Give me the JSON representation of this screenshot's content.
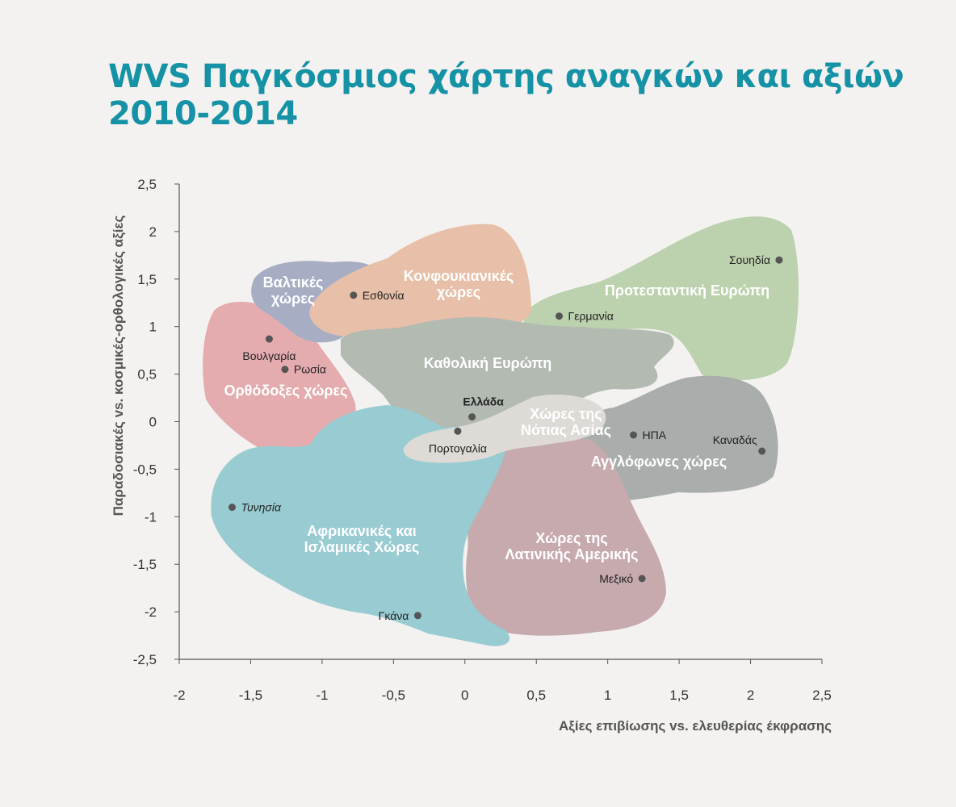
{
  "title": {
    "line1": "WVS Παγκόσμιος χάρτης αναγκών και αξιών",
    "line2": "2010-2014"
  },
  "colors": {
    "title": "#1592a6",
    "baltic": "#a7aec4",
    "confucian": "#e8bfa8",
    "protestant": "#bcd1ae",
    "orthodox": "#e5acb0",
    "catholic": "#b2bab2",
    "african_islamic": "#98cbd2",
    "latin_america": "#c6aaae",
    "english_speaking": "#a9adab",
    "south_asia": "#dedad6",
    "point": "#555555"
  },
  "chart_data": {
    "type": "scatter",
    "xlabel": "Αξίες επιβίωσης vs. ελευθερίας έκφρασης",
    "ylabel": "Παραδοσιακές vs. κοσμικές-ορθολογικές αξίες",
    "xlim": [
      -2,
      2.5
    ],
    "ylim": [
      -2.5,
      2.5
    ],
    "xticks": [
      {
        "v": -2,
        "label": "-2"
      },
      {
        "v": -1.5,
        "label": "-1,5"
      },
      {
        "v": -1,
        "label": "-1"
      },
      {
        "v": -0.5,
        "label": "-0,5"
      },
      {
        "v": 0,
        "label": "0"
      },
      {
        "v": 0.5,
        "label": "0,5"
      },
      {
        "v": 1,
        "label": "1"
      },
      {
        "v": 1.5,
        "label": "1,5"
      },
      {
        "v": 2,
        "label": "2"
      },
      {
        "v": 2.5,
        "label": "2,5"
      }
    ],
    "yticks": [
      {
        "v": 2.5,
        "label": "2,5"
      },
      {
        "v": 2,
        "label": "2"
      },
      {
        "v": 1.5,
        "label": "1,5"
      },
      {
        "v": 1,
        "label": "1"
      },
      {
        "v": 0.5,
        "label": "0,5"
      },
      {
        "v": 0,
        "label": "0"
      },
      {
        "v": -0.5,
        "label": "-0,5"
      },
      {
        "v": -1,
        "label": "-1"
      },
      {
        "v": -1.5,
        "label": "-1,5"
      },
      {
        "v": -2,
        "label": "-2"
      },
      {
        "v": -2.5,
        "label": "-2,5"
      }
    ],
    "points": [
      {
        "name": "Σουηδία",
        "x": 2.2,
        "y": 1.7,
        "anchor": "end",
        "style": ""
      },
      {
        "name": "Γερμανία",
        "x": 0.66,
        "y": 1.11,
        "anchor": "start",
        "style": ""
      },
      {
        "name": "Εσθονία",
        "x": -0.78,
        "y": 1.33,
        "anchor": "start",
        "style": ""
      },
      {
        "name": "Βουλγαρία",
        "x": -1.37,
        "y": 0.87,
        "anchor": "middle-below",
        "style": ""
      },
      {
        "name": "Ρωσία",
        "x": -1.26,
        "y": 0.55,
        "anchor": "start",
        "style": ""
      },
      {
        "name": "Ελλάδα",
        "x": 0.05,
        "y": 0.05,
        "anchor": "middle-above",
        "style": "bold"
      },
      {
        "name": "Πορτογαλία",
        "x": -0.05,
        "y": -0.1,
        "anchor": "middle-below",
        "style": ""
      },
      {
        "name": "ΗΠΑ",
        "x": 1.18,
        "y": -0.14,
        "anchor": "start",
        "style": ""
      },
      {
        "name": "Καναδάς",
        "x": 2.08,
        "y": -0.31,
        "anchor": "end-above",
        "style": ""
      },
      {
        "name": "Τυνησία",
        "x": -1.63,
        "y": -0.9,
        "anchor": "start",
        "style": "italic"
      },
      {
        "name": "Μεξικό",
        "x": 1.24,
        "y": -1.65,
        "anchor": "end",
        "style": ""
      },
      {
        "name": "Γκάνα",
        "x": -0.33,
        "y": -2.04,
        "anchor": "end",
        "style": ""
      }
    ],
    "regions": [
      {
        "name": "Βαλτικές χώρες",
        "lines": [
          "Βαλτικές",
          "χώρες"
        ],
        "color": "#a7aec4"
      },
      {
        "name": "Κονφουκιανικές χώρες",
        "lines": [
          "Κονφουκιανικές",
          "χώρες"
        ],
        "color": "#e8bfa8"
      },
      {
        "name": "Προτεσταντική Ευρώπη",
        "lines": [
          "Προτεσταντική Ευρώπη"
        ],
        "color": "#bcd1ae"
      },
      {
        "name": "Ορθόδοξες χώρες",
        "lines": [
          "Ορθόδοξες χώρες"
        ],
        "color": "#e5acb0"
      },
      {
        "name": "Καθολική Ευρώπη",
        "lines": [
          "Καθολική Ευρώπη"
        ],
        "color": "#b2bab2"
      },
      {
        "name": "Αφρικανικές και Ισλαμικές Χώρες",
        "lines": [
          "Αφρικανικές και",
          "Ισλαμικές Χώρες"
        ],
        "color": "#98cbd2"
      },
      {
        "name": "Χώρες της Λατινικής Αμερικής",
        "lines": [
          "Χώρες της",
          "Λατινικής Αμερικής"
        ],
        "color": "#c6aaae"
      },
      {
        "name": "Αγγλόφωνες χώρες",
        "lines": [
          "Αγγλόφωνες χώρες"
        ],
        "color": "#a9adab"
      },
      {
        "name": "Χώρες της Νότιας Ασίας",
        "lines": [
          "Χώρες της",
          "Νότιας Ασίας"
        ],
        "color": "#dedad6"
      }
    ]
  }
}
